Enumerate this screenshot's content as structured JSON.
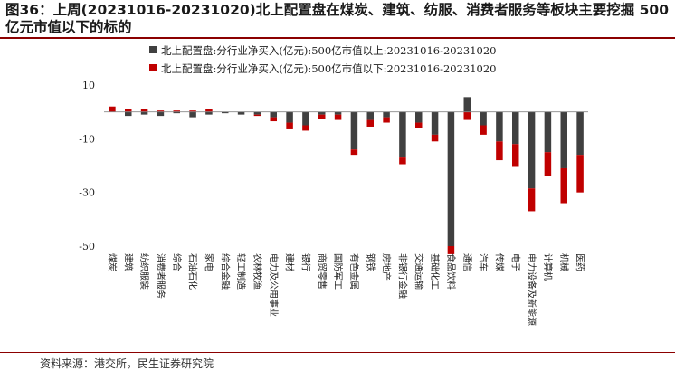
{
  "title": "图36：上周(20231016-20231020)北上配置盘在煤炭、建筑、纺服、消费者服务等板块主要挖掘 500 亿元市值以下的标的",
  "source": "资料来源：港交所，民生证券研究院",
  "colors": {
    "above": "#404040",
    "below": "#c00000",
    "accent": "#8b0000"
  },
  "chart_data": {
    "type": "bar",
    "ylim": [
      -50,
      10
    ],
    "yticks": [
      10,
      -10,
      -30,
      -50
    ],
    "categories": [
      "煤炭",
      "建筑",
      "纺织服装",
      "消费者服务",
      "综合",
      "石油石化",
      "家电",
      "综合金融",
      "轻工制造",
      "农林牧渔",
      "电力及公用事业",
      "建材",
      "银行",
      "商贸零售",
      "国防军工",
      "有色金属",
      "钢铁",
      "房地产",
      "非银行金融",
      "交通运输",
      "基础化工",
      "食品饮料",
      "通信",
      "汽车",
      "传媒",
      "电子",
      "电力设备及新能源",
      "计算机",
      "机械",
      "医药"
    ],
    "series": [
      {
        "name": "北上配置盘:分行业净买入(亿元):500亿市值以上:20231016-20231020",
        "values": [
          0,
          -1.5,
          -1,
          -1.5,
          -0.5,
          -2,
          -1,
          -0.5,
          -1,
          -1,
          -2,
          -4,
          -5,
          -1,
          -1,
          -14,
          -3,
          -2,
          -17,
          -4,
          -8.5,
          -50,
          5.5,
          -5,
          -11,
          -12,
          -28.5,
          -15,
          -21,
          -16
        ]
      },
      {
        "name": "北上配置盘:分行业净买入(亿元):500亿市值以下:20231016-20231020",
        "values": [
          2,
          1,
          1,
          0.5,
          0.5,
          0.5,
          1,
          0,
          0,
          -0.5,
          -1.5,
          -2.5,
          -2,
          -1.5,
          -2,
          -2,
          -2.5,
          -2,
          -2.5,
          -2,
          -2.5,
          -3,
          -3,
          -3.5,
          -7,
          -8.5,
          -8.5,
          -9,
          -13,
          -14
        ]
      }
    ]
  }
}
